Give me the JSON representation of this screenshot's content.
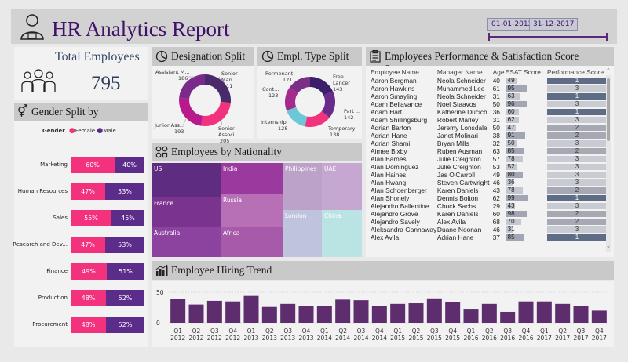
{
  "header": {
    "title": "HR Analytics Report",
    "date_start": "01-01-2012",
    "date_end": "31-12-2017"
  },
  "total": {
    "label": "Total Employees",
    "value": "795"
  },
  "gender": {
    "title": "Gender Split by Department",
    "legend_title": "Gender",
    "female_label": "Female",
    "male_label": "Male",
    "female_color": "#f2327c",
    "male_color": "#5b2c8a",
    "rows": [
      {
        "dept": "Marketing",
        "female": 60,
        "male": 40,
        "female_label": "60%",
        "male_label": "40%"
      },
      {
        "dept": "Human Resources",
        "female": 47,
        "male": 53,
        "female_label": "47%",
        "male_label": "53%"
      },
      {
        "dept": "Sales",
        "female": 55,
        "male": 45,
        "female_label": "55%",
        "male_label": "45%"
      },
      {
        "dept": "Research and Dev...",
        "female": 47,
        "male": 53,
        "female_label": "47%",
        "male_label": "53%"
      },
      {
        "dept": "Finance",
        "female": 49,
        "male": 51,
        "female_label": "49%",
        "male_label": "51%"
      },
      {
        "dept": "Production",
        "female": 48,
        "male": 52,
        "female_label": "48%",
        "male_label": "52%"
      },
      {
        "dept": "Procurement",
        "female": 48,
        "male": 52,
        "female_label": "48%",
        "male_label": "52%"
      }
    ]
  },
  "designation": {
    "title": "Designation Split",
    "slices": [
      {
        "name": "Senior Man...",
        "value": 211,
        "value_label": "211",
        "color": "#4a2a6a"
      },
      {
        "name": "Senior Associ...",
        "value": 205,
        "value_label": "205",
        "color": "#f2327c"
      },
      {
        "name": "Junior Ass...",
        "value": 193,
        "value_label": "193",
        "color": "#b81a8e"
      },
      {
        "name": "Assistant M...",
        "value": 186,
        "value_label": "186",
        "color": "#7a2a88"
      }
    ]
  },
  "empltype": {
    "title": "Empl. Type Split",
    "slices": [
      {
        "name": "Free Lancer",
        "value": 143,
        "value_label": "143",
        "color": "#3c1e6a"
      },
      {
        "name": "Part ...",
        "value": 142,
        "value_label": "142",
        "color": "#6a2a8a"
      },
      {
        "name": "Temporary",
        "value": 138,
        "value_label": "138",
        "color": "#f2327c"
      },
      {
        "name": "Internship",
        "value": 128,
        "value_label": "128",
        "color": "#6cc8d6"
      },
      {
        "name": "Cont...",
        "value": 123,
        "value_label": "123",
        "color": "#a62a8e"
      },
      {
        "name": "Permenant",
        "value": 121,
        "value_label": "121",
        "color": "#7a2e86"
      }
    ]
  },
  "nationality": {
    "title": "Employees by Nationality",
    "tiles": [
      {
        "name": "US",
        "color": "#5e2d82"
      },
      {
        "name": "India",
        "color": "#9a3a9e"
      },
      {
        "name": "Philippines",
        "color": "#bca1c9"
      },
      {
        "name": "UAE",
        "color": "#c6a7d1"
      },
      {
        "name": "France",
        "color": "#7a3490"
      },
      {
        "name": "Russia",
        "color": "#b770b6"
      },
      {
        "name": "Australia",
        "color": "#8c43a0"
      },
      {
        "name": "Africa",
        "color": "#a65aa9"
      },
      {
        "name": "London",
        "color": "#bfc4dc"
      },
      {
        "name": "China",
        "color": "#b9e4e3"
      }
    ]
  },
  "table": {
    "title": "Employees Performance & Satisfaction Score Summary",
    "columns": [
      "Employee Name",
      "Manager Name",
      "Age",
      "ESAT Score",
      "Performance Score"
    ],
    "rows": [
      {
        "employee": "Aaron Bergman",
        "manager": "Neola Schneider",
        "age": "40",
        "esat": 49,
        "esat_label": "49",
        "perf": 1,
        "perf_label": "1"
      },
      {
        "employee": "Aaron Hawkins",
        "manager": "Muhammed Lee",
        "age": "61",
        "esat": 95,
        "esat_label": "95",
        "perf": 3,
        "perf_label": "3"
      },
      {
        "employee": "Aaron Smayling",
        "manager": "Neola Schneider",
        "age": "31",
        "esat": 63,
        "esat_label": "63",
        "perf": 1,
        "perf_label": "1"
      },
      {
        "employee": "Adam Bellavance",
        "manager": "Noel Staavos",
        "age": "50",
        "esat": 96,
        "esat_label": "96",
        "perf": 3,
        "perf_label": "3"
      },
      {
        "employee": "Adam Hart",
        "manager": "Katherine Ducich",
        "age": "36",
        "esat": 60,
        "esat_label": "60",
        "perf": 1,
        "perf_label": "1"
      },
      {
        "employee": "Adam Shillingsburg",
        "manager": "Robert Marley",
        "age": "31",
        "esat": 62,
        "esat_label": "62",
        "perf": 3,
        "perf_label": "3"
      },
      {
        "employee": "Adrian Barton",
        "manager": "Jeremy Lonsdale",
        "age": "50",
        "esat": 47,
        "esat_label": "47",
        "perf": 2,
        "perf_label": "2"
      },
      {
        "employee": "Adrian Hane",
        "manager": "Janet Molinari",
        "age": "38",
        "esat": 91,
        "esat_label": "91",
        "perf": 2,
        "perf_label": "2"
      },
      {
        "employee": "Adrian Shami",
        "manager": "Bryan Mills",
        "age": "32",
        "esat": 50,
        "esat_label": "50",
        "perf": 3,
        "perf_label": "3"
      },
      {
        "employee": "Aimee Bixby",
        "manager": "Ruben Ausman",
        "age": "63",
        "esat": 85,
        "esat_label": "85",
        "perf": 2,
        "perf_label": "2"
      },
      {
        "employee": "Alan Barnes",
        "manager": "Julie Creighton",
        "age": "57",
        "esat": 78,
        "esat_label": "78",
        "perf": 3,
        "perf_label": "3"
      },
      {
        "employee": "Alan Dominguez",
        "manager": "Julie Creighton",
        "age": "53",
        "esat": 52,
        "esat_label": "52",
        "perf": 3,
        "perf_label": "3"
      },
      {
        "employee": "Alan Haines",
        "manager": "Jas O'Carroll",
        "age": "49",
        "esat": 80,
        "esat_label": "80",
        "perf": 3,
        "perf_label": "3"
      },
      {
        "employee": "Alan Hwang",
        "manager": "Steven Cartwright",
        "age": "46",
        "esat": 36,
        "esat_label": "36",
        "perf": 3,
        "perf_label": "3"
      },
      {
        "employee": "Alan Schoenberger",
        "manager": "Karen Daniels",
        "age": "43",
        "esat": 78,
        "esat_label": "78",
        "perf": 2,
        "perf_label": "2"
      },
      {
        "employee": "Alan Shonely",
        "manager": "Dennis Bolton",
        "age": "62",
        "esat": 99,
        "esat_label": "99",
        "perf": 1,
        "perf_label": "1"
      },
      {
        "employee": "Alejandro Ballentine",
        "manager": "Chuck Sachs",
        "age": "29",
        "esat": 43,
        "esat_label": "43",
        "perf": 3,
        "perf_label": "3"
      },
      {
        "employee": "Alejandro Grove",
        "manager": "Karen Daniels",
        "age": "60",
        "esat": 98,
        "esat_label": "98",
        "perf": 2,
        "perf_label": "2"
      },
      {
        "employee": "Alejandro Savely",
        "manager": "Alex Avila",
        "age": "68",
        "esat": 70,
        "esat_label": "70",
        "perf": 2,
        "perf_label": "2"
      },
      {
        "employee": "Aleksandra Gannaway",
        "manager": "Duane Noonan",
        "age": "46",
        "esat": 31,
        "esat_label": "31",
        "perf": 3,
        "perf_label": "3"
      },
      {
        "employee": "Alex Avila",
        "manager": "Adrian Hane",
        "age": "37",
        "esat": 85,
        "esat_label": "85",
        "perf": 1,
        "perf_label": "1"
      }
    ]
  },
  "chart_data": {
    "type": "bar",
    "title": "Employee Hiring Trend",
    "ylim": [
      0,
      50
    ],
    "yticks": [
      "50",
      "0"
    ],
    "categories": [
      "Q1 2012",
      "Q2 2012",
      "Q3 2012",
      "Q4 2012",
      "Q1 2013",
      "Q2 2013",
      "Q3 2013",
      "Q4 2013",
      "Q1 2014",
      "Q2 2014",
      "Q3 2014",
      "Q4 2014",
      "Q1 2015",
      "Q2 2015",
      "Q3 2015",
      "Q4 2015",
      "Q1 2016",
      "Q2 2016",
      "Q3 2016",
      "Q4 2016",
      "Q1 2017",
      "Q2 2017",
      "Q3 2017",
      "Q4 2017"
    ],
    "quarter_labels": [
      "Q1",
      "Q2",
      "Q3",
      "Q4",
      "Q1",
      "Q2",
      "Q3",
      "Q4",
      "Q1",
      "Q2",
      "Q3",
      "Q4",
      "Q1",
      "Q2",
      "Q3",
      "Q4",
      "Q1",
      "Q2",
      "Q3",
      "Q4",
      "Q1",
      "Q2",
      "Q3",
      "Q4"
    ],
    "year_labels": [
      "2012",
      "2012",
      "2012",
      "2012",
      "2013",
      "2013",
      "2013",
      "2013",
      "2014",
      "2014",
      "2014",
      "2014",
      "2015",
      "2015",
      "2015",
      "2015",
      "2016",
      "2016",
      "2016",
      "2016",
      "2017",
      "2017",
      "2017",
      "2017"
    ],
    "values": [
      39,
      30,
      36,
      35,
      44,
      26,
      31,
      27,
      28,
      38,
      37,
      27,
      31,
      32,
      40,
      34,
      23,
      31,
      18,
      35,
      35,
      31,
      27,
      20
    ],
    "color": "#5e2d6e"
  }
}
